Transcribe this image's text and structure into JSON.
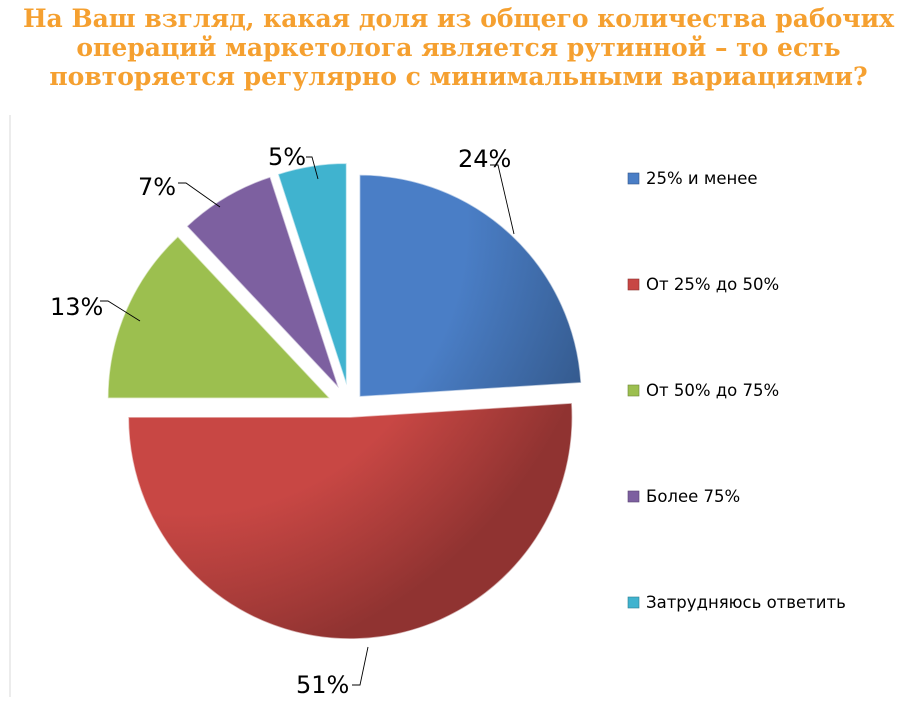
{
  "title_lines": [
    "На Ваш взгляд, какая доля из общего количества рабочих",
    "операций маркетолога является рутинной – то есть",
    "повторяется регулярно с минимальными вариациями?"
  ],
  "chart_data": {
    "type": "pie",
    "title": "На Ваш взгляд, какая доля из общего количества рабочих операций маркетолога является рутинной – то есть повторяется регулярно с минимальными вариациями?",
    "legend_position": "right",
    "exploded": true,
    "slices": [
      {
        "label": "25% и менее",
        "value": 24,
        "value_label": "24%",
        "color": "#4a7ec6"
      },
      {
        "label": "От 25% до 50%",
        "value": 51,
        "value_label": "51%",
        "color": "#c84744"
      },
      {
        "label": "От 50% до 75%",
        "value": 13,
        "value_label": "13%",
        "color": "#9cbf4f"
      },
      {
        "label": "Более 75%",
        "value": 7,
        "value_label": "7%",
        "color": "#7d60a0"
      },
      {
        "label": "Затрудняюсь ответить",
        "value": 5,
        "value_label": "5%",
        "color": "#40b3cf"
      }
    ]
  }
}
